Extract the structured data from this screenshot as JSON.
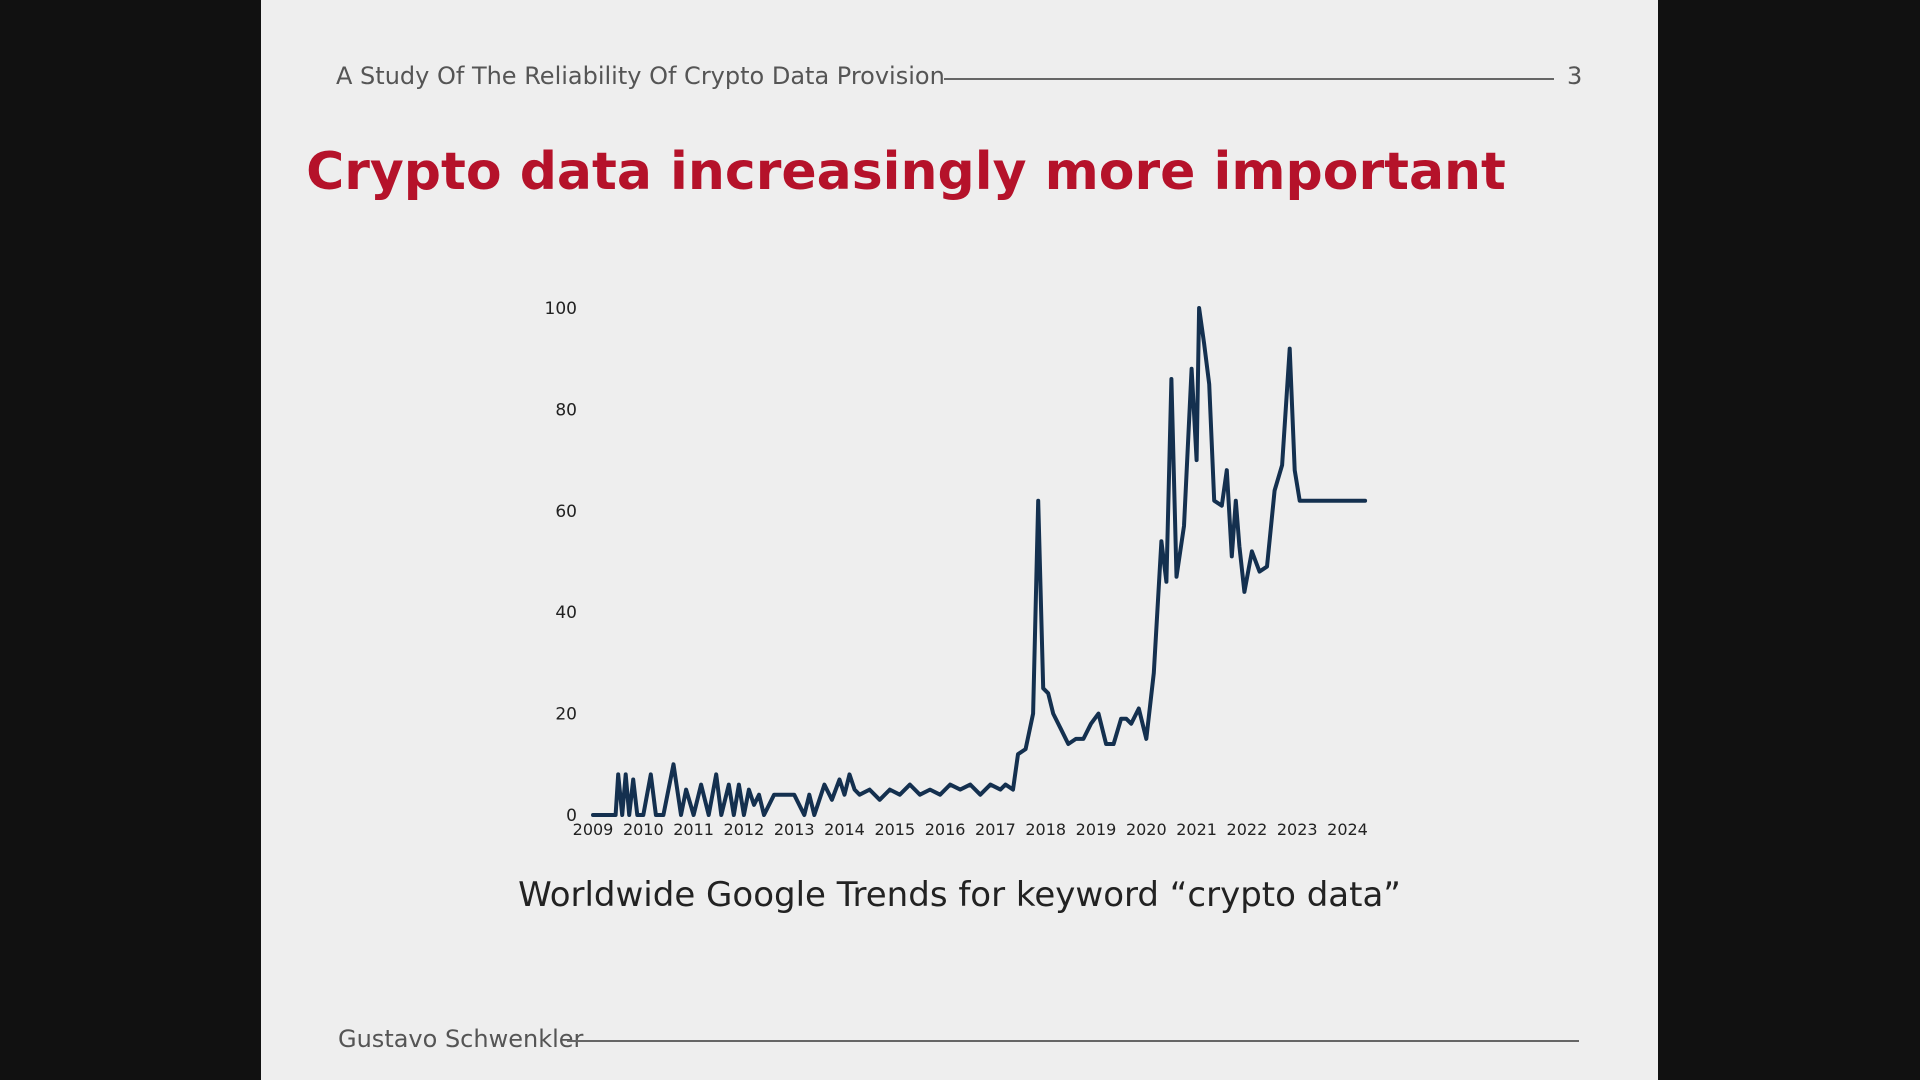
{
  "header": {
    "title": "A Study Of The Reliability Of Crypto Data Provision",
    "page_number": "3"
  },
  "slide": {
    "title": "Crypto data increasingly more important",
    "caption": "Worldwide Google Trends for keyword “crypto data”"
  },
  "footer": {
    "author": "Gustavo Schwenkler"
  },
  "colors": {
    "title": "#b5122a",
    "line": "#14304f",
    "background": "#eeeeee"
  },
  "chart_data": {
    "type": "line",
    "title": "",
    "xlabel": "",
    "ylabel": "",
    "xlim": [
      2009,
      2024.4
    ],
    "ylim": [
      0,
      100
    ],
    "x_ticks": [
      "2009",
      "2010",
      "2011",
      "2012",
      "2013",
      "2014",
      "2015",
      "2016",
      "2017",
      "2018",
      "2019",
      "2020",
      "2021",
      "2022",
      "2023",
      "2024"
    ],
    "y_ticks": [
      "0",
      "20",
      "40",
      "60",
      "80",
      "100"
    ],
    "grid": false,
    "series": [
      {
        "name": "",
        "color": "#14304f",
        "x": [
          2009.0,
          2009.45,
          2009.5,
          2009.58,
          2009.65,
          2009.72,
          2009.8,
          2009.88,
          2010.0,
          2010.15,
          2010.25,
          2010.4,
          2010.6,
          2010.75,
          2010.85,
          2011.0,
          2011.15,
          2011.3,
          2011.45,
          2011.55,
          2011.7,
          2011.8,
          2011.9,
          2012.0,
          2012.1,
          2012.2,
          2012.3,
          2012.4,
          2012.6,
          2012.8,
          2013.0,
          2013.2,
          2013.3,
          2013.4,
          2013.5,
          2013.6,
          2013.75,
          2013.9,
          2014.0,
          2014.1,
          2014.2,
          2014.3,
          2014.5,
          2014.7,
          2014.9,
          2015.1,
          2015.3,
          2015.5,
          2015.7,
          2015.9,
          2016.1,
          2016.3,
          2016.5,
          2016.7,
          2016.9,
          2017.1,
          2017.2,
          2017.35,
          2017.45,
          2017.6,
          2017.75,
          2017.85,
          2017.95,
          2018.05,
          2018.15,
          2018.3,
          2018.45,
          2018.6,
          2018.75,
          2018.9,
          2019.05,
          2019.2,
          2019.35,
          2019.5,
          2019.6,
          2019.7,
          2019.85,
          2020.0,
          2020.15,
          2020.3,
          2020.4,
          2020.5,
          2020.6,
          2020.75,
          2020.9,
          2021.0,
          2021.05,
          2021.15,
          2021.25,
          2021.35,
          2021.5,
          2021.6,
          2021.7,
          2021.78,
          2021.85,
          2021.95,
          2022.1,
          2022.25,
          2022.4,
          2022.55,
          2022.7,
          2022.85,
          2022.95,
          2023.05,
          2023.2,
          2023.35,
          2023.45,
          2023.55,
          2023.7,
          2023.85,
          2023.95,
          2024.05,
          2024.15,
          2024.25,
          2024.35
        ],
        "y": [
          0,
          0,
          8,
          0,
          8,
          0,
          7,
          0,
          0,
          8,
          0,
          0,
          10,
          0,
          5,
          0,
          6,
          0,
          8,
          0,
          6,
          0,
          6,
          0,
          5,
          2,
          4,
          0,
          4,
          4,
          4,
          0,
          4,
          0,
          3,
          6,
          3,
          7,
          4,
          8,
          5,
          4,
          5,
          3,
          5,
          4,
          6,
          4,
          5,
          4,
          6,
          5,
          6,
          4,
          6,
          5,
          6,
          5,
          12,
          13,
          20,
          62,
          25,
          24,
          20,
          17,
          14,
          15,
          15,
          18,
          20,
          14,
          14,
          19,
          19,
          18,
          21,
          15,
          28,
          54,
          46,
          86,
          47,
          57,
          88,
          70,
          100,
          93,
          85,
          62,
          61,
          68,
          51,
          62,
          53,
          44,
          52,
          48,
          49,
          64,
          69,
          92,
          68,
          62,
          62,
          62,
          62,
          62,
          62,
          62,
          62,
          62,
          62,
          62,
          62
        ]
      }
    ]
  }
}
